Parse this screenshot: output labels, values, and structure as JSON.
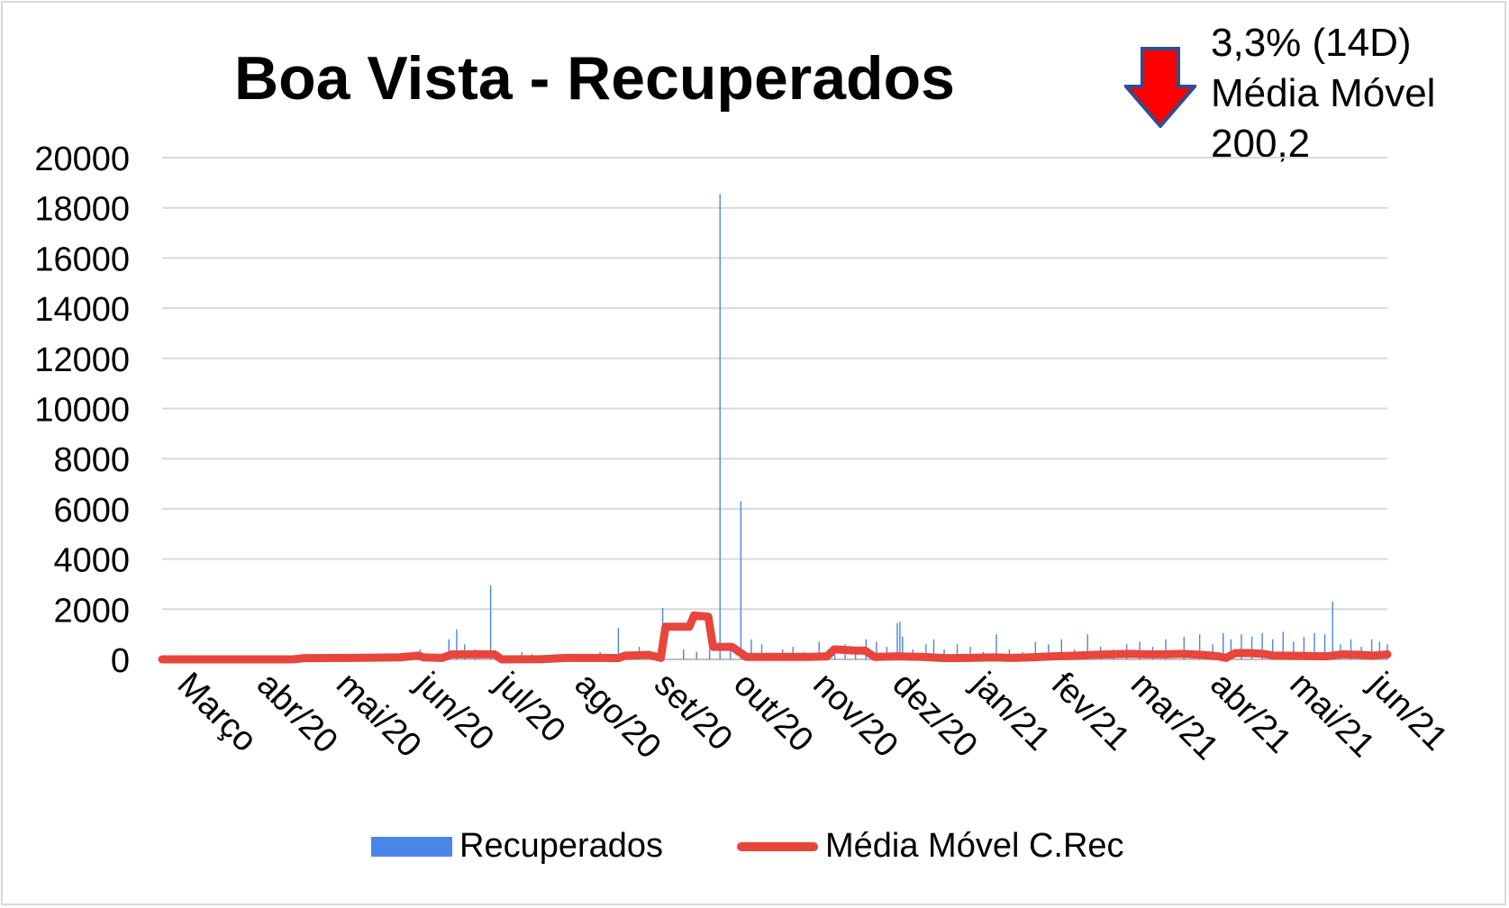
{
  "chart_data": {
    "type": "bar+line",
    "title": "Boa Vista - Recuperados",
    "ylim": [
      0,
      20000
    ],
    "y_ticks": [
      "0",
      "2000",
      "4000",
      "6000",
      "8000",
      "10000",
      "12000",
      "14000",
      "16000",
      "18000",
      "20000"
    ],
    "x_tick_labels": [
      "Março",
      "abr/20",
      "mai/20",
      "jun/20",
      "jul/20",
      "ago/20",
      "set/20",
      "out/20",
      "nov/20",
      "dez/20",
      "jan/21",
      "fev/21",
      "mar/21",
      "abr/21",
      "mai/21",
      "jun/21"
    ],
    "x_range_days": [
      0,
      470
    ],
    "grid": "horizontal",
    "legend_position": "bottom",
    "series": [
      {
        "name": "Recuperados",
        "kind": "bar",
        "color": "#4a86e8",
        "points": [
          [
            58,
            100
          ],
          [
            62,
            150
          ],
          [
            80,
            200
          ],
          [
            92,
            250
          ],
          [
            97,
            300
          ],
          [
            99,
            400
          ],
          [
            110,
            800
          ],
          [
            113,
            1200
          ],
          [
            116,
            600
          ],
          [
            120,
            400
          ],
          [
            126,
            2950
          ],
          [
            138,
            300
          ],
          [
            142,
            200
          ],
          [
            150,
            150
          ],
          [
            160,
            200
          ],
          [
            168,
            300
          ],
          [
            175,
            1250
          ],
          [
            183,
            500
          ],
          [
            192,
            2050
          ],
          [
            200,
            400
          ],
          [
            205,
            300
          ],
          [
            210,
            400
          ],
          [
            214,
            18550
          ],
          [
            218,
            500
          ],
          [
            222,
            6300
          ],
          [
            226,
            800
          ],
          [
            230,
            600
          ],
          [
            238,
            400
          ],
          [
            242,
            500
          ],
          [
            246,
            300
          ],
          [
            252,
            700
          ],
          [
            258,
            500
          ],
          [
            262,
            600
          ],
          [
            266,
            400
          ],
          [
            270,
            800
          ],
          [
            274,
            700
          ],
          [
            278,
            500
          ],
          [
            282,
            1450
          ],
          [
            283,
            1500
          ],
          [
            284,
            900
          ],
          [
            288,
            400
          ],
          [
            293,
            600
          ],
          [
            296,
            800
          ],
          [
            300,
            400
          ],
          [
            305,
            600
          ],
          [
            310,
            500
          ],
          [
            315,
            300
          ],
          [
            320,
            1000
          ],
          [
            325,
            400
          ],
          [
            330,
            300
          ],
          [
            335,
            700
          ],
          [
            340,
            600
          ],
          [
            345,
            800
          ],
          [
            350,
            400
          ],
          [
            355,
            1000
          ],
          [
            360,
            500
          ],
          [
            365,
            400
          ],
          [
            370,
            600
          ],
          [
            375,
            700
          ],
          [
            380,
            500
          ],
          [
            385,
            800
          ],
          [
            392,
            900
          ],
          [
            398,
            1000
          ],
          [
            403,
            600
          ],
          [
            407,
            1050
          ],
          [
            410,
            800
          ],
          [
            414,
            1000
          ],
          [
            418,
            900
          ],
          [
            422,
            1050
          ],
          [
            426,
            800
          ],
          [
            430,
            1100
          ],
          [
            434,
            700
          ],
          [
            438,
            900
          ],
          [
            442,
            1050
          ],
          [
            446,
            1000
          ],
          [
            449,
            2300
          ],
          [
            452,
            600
          ],
          [
            456,
            800
          ],
          [
            460,
            500
          ],
          [
            464,
            800
          ],
          [
            467,
            700
          ],
          [
            470,
            600
          ]
        ]
      },
      {
        "name": "Média Móvel C.Rec",
        "kind": "line",
        "color": "#e8453c",
        "points": [
          [
            0,
            0
          ],
          [
            55,
            0
          ],
          [
            60,
            50
          ],
          [
            80,
            60
          ],
          [
            100,
            80
          ],
          [
            108,
            150
          ],
          [
            110,
            80
          ],
          [
            118,
            60
          ],
          [
            122,
            200
          ],
          [
            130,
            200
          ],
          [
            140,
            200
          ],
          [
            143,
            0
          ],
          [
            160,
            10
          ],
          [
            170,
            60
          ],
          [
            186,
            60
          ],
          [
            192,
            50
          ],
          [
            195,
            150
          ],
          [
            205,
            180
          ],
          [
            210,
            60
          ],
          [
            212,
            1300
          ],
          [
            218,
            1300
          ],
          [
            222,
            1300
          ],
          [
            224,
            1750
          ],
          [
            230,
            1700
          ],
          [
            232,
            500
          ],
          [
            240,
            500
          ],
          [
            246,
            100
          ],
          [
            256,
            100
          ],
          [
            265,
            100
          ],
          [
            272,
            100
          ],
          [
            280,
            120
          ],
          [
            283,
            400
          ],
          [
            292,
            350
          ],
          [
            296,
            350
          ],
          [
            300,
            100
          ],
          [
            310,
            120
          ],
          [
            320,
            100
          ],
          [
            330,
            50
          ],
          [
            340,
            60
          ],
          [
            350,
            80
          ],
          [
            358,
            60
          ],
          [
            366,
            80
          ],
          [
            375,
            120
          ],
          [
            385,
            150
          ],
          [
            392,
            180
          ],
          [
            400,
            200
          ],
          [
            408,
            220
          ],
          [
            415,
            200
          ],
          [
            422,
            200
          ],
          [
            430,
            220
          ],
          [
            438,
            180
          ],
          [
            445,
            120
          ],
          [
            448,
            60
          ],
          [
            452,
            250
          ],
          [
            458,
            250
          ],
          [
            464,
            220
          ],
          [
            468,
            150
          ],
          [
            472,
            150
          ],
          [
            480,
            140
          ],
          [
            490,
            120
          ],
          [
            497,
            200
          ],
          [
            505,
            180
          ],
          [
            510,
            150
          ],
          [
            516,
            200
          ]
        ]
      }
    ]
  },
  "indicator": {
    "arrow_icon": "down-arrow-icon",
    "line1": "3,3% (14D)",
    "line2": "Média Móvel",
    "line3": "200,2"
  }
}
